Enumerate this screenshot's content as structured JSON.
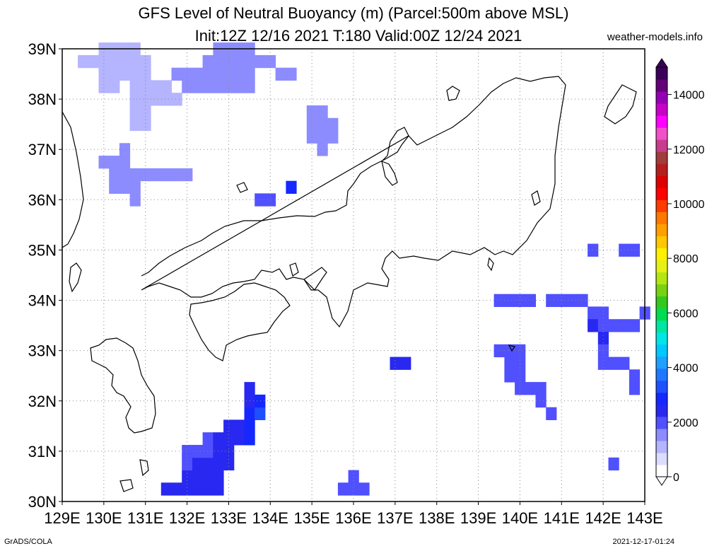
{
  "title_line1": "GFS Level of Neutral Buoyancy (m) (Parcel:500m above MSL)",
  "title_line2": "Init:12Z 12/16 2021 T:180 Valid:00Z 12/24 2021",
  "credit": "weather-models.info",
  "footer_left": "GrADS/COLA",
  "footer_right": "2021-12-17-01:24",
  "map": {
    "lon_range": [
      129,
      143
    ],
    "lat_range": [
      30,
      39
    ],
    "lon_labels": [
      "129E",
      "130E",
      "131E",
      "132E",
      "133E",
      "134E",
      "135E",
      "136E",
      "137E",
      "138E",
      "139E",
      "140E",
      "141E",
      "142E",
      "143E"
    ],
    "lat_labels": [
      "30N",
      "31N",
      "32N",
      "33N",
      "34N",
      "35N",
      "36N",
      "37N",
      "38N",
      "39N"
    ],
    "grid": true,
    "grid_style": "dotted"
  },
  "colorbar": {
    "labels": [
      "0",
      "2000",
      "4000",
      "6000",
      "8000",
      "10000",
      "12000",
      "14000"
    ],
    "max": 15000,
    "colors": [
      "#ffffff",
      "#dcdcff",
      "#b4b4ff",
      "#8c8cff",
      "#5050ff",
      "#2828f0",
      "#1428ff",
      "#1e50ff",
      "#1e78ff",
      "#1ea0ff",
      "#00c8ff",
      "#00e6e6",
      "#00e6a0",
      "#00dc50",
      "#32c81e",
      "#78d214",
      "#b4e614",
      "#e6f014",
      "#fff000",
      "#ffc800",
      "#ffa000",
      "#ff7800",
      "#ff3c00",
      "#ff0000",
      "#dc0000",
      "#b41e1e",
      "#a03c3c",
      "#c83c8c",
      "#f050c8",
      "#ff00ff",
      "#c800c8",
      "#9600b4",
      "#640078",
      "#3c005a"
    ]
  },
  "chart_data": {
    "type": "heatmap",
    "title": "GFS Level of Neutral Buoyancy (m) (Parcel:500m above MSL)",
    "subtitle": "Init:12Z 12/16 2021 T:180 Valid:00Z 12/24 2021",
    "units": "m",
    "xlim": [
      129,
      143
    ],
    "ylim": [
      30,
      39
    ],
    "cells": [
      {
        "lon": 129.5,
        "lat": 38.75,
        "value": 1200
      },
      {
        "lon": 129.75,
        "lat": 38.75,
        "value": 1200
      },
      {
        "lon": 130.0,
        "lat": 38.75,
        "value": 1300
      },
      {
        "lon": 130.25,
        "lat": 38.75,
        "value": 1300
      },
      {
        "lon": 130.5,
        "lat": 38.75,
        "value": 1200
      },
      {
        "lon": 130.75,
        "lat": 38.75,
        "value": 1100
      },
      {
        "lon": 131.0,
        "lat": 38.75,
        "value": 1200
      },
      {
        "lon": 130.0,
        "lat": 39.0,
        "value": 1200
      },
      {
        "lon": 130.25,
        "lat": 39.0,
        "value": 1200
      },
      {
        "lon": 130.5,
        "lat": 39.0,
        "value": 1100
      },
      {
        "lon": 130.75,
        "lat": 39.0,
        "value": 1100
      },
      {
        "lon": 130.0,
        "lat": 38.5,
        "value": 1200
      },
      {
        "lon": 130.25,
        "lat": 38.5,
        "value": 1300
      },
      {
        "lon": 130.5,
        "lat": 38.5,
        "value": 1200
      },
      {
        "lon": 130.75,
        "lat": 38.5,
        "value": 1200
      },
      {
        "lon": 131.0,
        "lat": 38.5,
        "value": 1300
      },
      {
        "lon": 130.0,
        "lat": 38.25,
        "value": 1200
      },
      {
        "lon": 130.25,
        "lat": 38.25,
        "value": 1200
      },
      {
        "lon": 130.75,
        "lat": 38.25,
        "value": 1300
      },
      {
        "lon": 131.0,
        "lat": 38.25,
        "value": 1300
      },
      {
        "lon": 131.25,
        "lat": 38.25,
        "value": 1300
      },
      {
        "lon": 131.5,
        "lat": 38.25,
        "value": 1300
      },
      {
        "lon": 130.75,
        "lat": 38.0,
        "value": 1300
      },
      {
        "lon": 131.0,
        "lat": 38.0,
        "value": 1300
      },
      {
        "lon": 131.25,
        "lat": 38.0,
        "value": 1300
      },
      {
        "lon": 131.5,
        "lat": 38.0,
        "value": 1300
      },
      {
        "lon": 131.75,
        "lat": 38.0,
        "value": 1300
      },
      {
        "lon": 130.75,
        "lat": 37.75,
        "value": 1300
      },
      {
        "lon": 131.0,
        "lat": 37.75,
        "value": 1300
      },
      {
        "lon": 130.75,
        "lat": 37.5,
        "value": 1300
      },
      {
        "lon": 131.0,
        "lat": 37.5,
        "value": 1300
      },
      {
        "lon": 131.75,
        "lat": 38.5,
        "value": 1400
      },
      {
        "lon": 132.0,
        "lat": 38.5,
        "value": 1400
      },
      {
        "lon": 132.25,
        "lat": 38.5,
        "value": 1400
      },
      {
        "lon": 132.5,
        "lat": 38.5,
        "value": 1400
      },
      {
        "lon": 132.75,
        "lat": 38.5,
        "value": 1400
      },
      {
        "lon": 133.0,
        "lat": 38.5,
        "value": 1400
      },
      {
        "lon": 133.25,
        "lat": 38.5,
        "value": 1400
      },
      {
        "lon": 133.5,
        "lat": 38.5,
        "value": 1400
      },
      {
        "lon": 132.0,
        "lat": 38.25,
        "value": 1400
      },
      {
        "lon": 132.25,
        "lat": 38.25,
        "value": 1400
      },
      {
        "lon": 132.5,
        "lat": 38.25,
        "value": 1400
      },
      {
        "lon": 132.75,
        "lat": 38.25,
        "value": 1400
      },
      {
        "lon": 133.0,
        "lat": 38.25,
        "value": 1400
      },
      {
        "lon": 133.25,
        "lat": 38.25,
        "value": 1400
      },
      {
        "lon": 133.5,
        "lat": 38.25,
        "value": 1400
      },
      {
        "lon": 132.5,
        "lat": 38.75,
        "value": 1400
      },
      {
        "lon": 132.75,
        "lat": 38.75,
        "value": 1400
      },
      {
        "lon": 133.0,
        "lat": 38.75,
        "value": 1400
      },
      {
        "lon": 133.25,
        "lat": 38.75,
        "value": 1400
      },
      {
        "lon": 133.5,
        "lat": 38.75,
        "value": 1400
      },
      {
        "lon": 132.75,
        "lat": 39.0,
        "value": 1400
      },
      {
        "lon": 133.0,
        "lat": 39.0,
        "value": 1400
      },
      {
        "lon": 133.25,
        "lat": 39.0,
        "value": 1400
      },
      {
        "lon": 133.5,
        "lat": 39.0,
        "value": 1400
      },
      {
        "lon": 133.75,
        "lat": 38.75,
        "value": 1400
      },
      {
        "lon": 134.0,
        "lat": 38.75,
        "value": 1400
      },
      {
        "lon": 134.25,
        "lat": 38.5,
        "value": 1400
      },
      {
        "lon": 134.5,
        "lat": 38.5,
        "value": 1400
      },
      {
        "lon": 135.0,
        "lat": 37.75,
        "value": 1500
      },
      {
        "lon": 135.25,
        "lat": 37.75,
        "value": 1500
      },
      {
        "lon": 135.0,
        "lat": 37.5,
        "value": 1500
      },
      {
        "lon": 135.25,
        "lat": 37.5,
        "value": 1500
      },
      {
        "lon": 135.5,
        "lat": 37.5,
        "value": 1500
      },
      {
        "lon": 135.0,
        "lat": 37.25,
        "value": 1500
      },
      {
        "lon": 135.25,
        "lat": 37.25,
        "value": 1500
      },
      {
        "lon": 135.5,
        "lat": 37.25,
        "value": 1500
      },
      {
        "lon": 135.25,
        "lat": 37.0,
        "value": 1500
      },
      {
        "lon": 130.0,
        "lat": 36.75,
        "value": 1600
      },
      {
        "lon": 130.25,
        "lat": 36.75,
        "value": 1600
      },
      {
        "lon": 130.5,
        "lat": 37.0,
        "value": 1600
      },
      {
        "lon": 130.5,
        "lat": 36.75,
        "value": 1600
      },
      {
        "lon": 130.75,
        "lat": 36.5,
        "value": 1700
      },
      {
        "lon": 131.0,
        "lat": 36.5,
        "value": 1700
      },
      {
        "lon": 131.25,
        "lat": 36.5,
        "value": 1700
      },
      {
        "lon": 131.5,
        "lat": 36.5,
        "value": 1700
      },
      {
        "lon": 131.75,
        "lat": 36.5,
        "value": 1700
      },
      {
        "lon": 132.0,
        "lat": 36.5,
        "value": 1700
      },
      {
        "lon": 130.25,
        "lat": 36.5,
        "value": 1600
      },
      {
        "lon": 130.5,
        "lat": 36.5,
        "value": 1600
      },
      {
        "lon": 130.25,
        "lat": 36.25,
        "value": 1600
      },
      {
        "lon": 130.5,
        "lat": 36.25,
        "value": 1600
      },
      {
        "lon": 130.75,
        "lat": 36.25,
        "value": 1600
      },
      {
        "lon": 130.75,
        "lat": 36.0,
        "value": 1600
      },
      {
        "lon": 133.75,
        "lat": 36.0,
        "value": 2100
      },
      {
        "lon": 134.0,
        "lat": 36.0,
        "value": 2100
      },
      {
        "lon": 134.5,
        "lat": 36.25,
        "value": 3000
      },
      {
        "lon": 131.5,
        "lat": 30.25,
        "value": 2300
      },
      {
        "lon": 131.75,
        "lat": 30.25,
        "value": 2300
      },
      {
        "lon": 132.0,
        "lat": 30.25,
        "value": 2300
      },
      {
        "lon": 132.25,
        "lat": 30.25,
        "value": 2400
      },
      {
        "lon": 132.5,
        "lat": 30.25,
        "value": 2400
      },
      {
        "lon": 132.75,
        "lat": 30.25,
        "value": 2300
      },
      {
        "lon": 132.0,
        "lat": 30.5,
        "value": 2300
      },
      {
        "lon": 132.25,
        "lat": 30.5,
        "value": 2400
      },
      {
        "lon": 132.5,
        "lat": 30.5,
        "value": 2400
      },
      {
        "lon": 132.75,
        "lat": 30.5,
        "value": 2300
      },
      {
        "lon": 132.0,
        "lat": 30.75,
        "value": 2200
      },
      {
        "lon": 132.25,
        "lat": 30.75,
        "value": 2300
      },
      {
        "lon": 132.5,
        "lat": 30.75,
        "value": 2300
      },
      {
        "lon": 132.75,
        "lat": 30.75,
        "value": 2300
      },
      {
        "lon": 133.0,
        "lat": 30.75,
        "value": 2300
      },
      {
        "lon": 132.0,
        "lat": 31.0,
        "value": 2200
      },
      {
        "lon": 132.25,
        "lat": 31.0,
        "value": 2200
      },
      {
        "lon": 132.5,
        "lat": 31.0,
        "value": 2200
      },
      {
        "lon": 132.75,
        "lat": 31.0,
        "value": 2300
      },
      {
        "lon": 133.0,
        "lat": 31.0,
        "value": 2300
      },
      {
        "lon": 132.5,
        "lat": 31.25,
        "value": 2200
      },
      {
        "lon": 132.75,
        "lat": 31.25,
        "value": 2300
      },
      {
        "lon": 133.0,
        "lat": 31.25,
        "value": 2400
      },
      {
        "lon": 133.25,
        "lat": 31.25,
        "value": 2600
      },
      {
        "lon": 133.5,
        "lat": 31.25,
        "value": 2800
      },
      {
        "lon": 133.0,
        "lat": 31.5,
        "value": 2400
      },
      {
        "lon": 133.25,
        "lat": 31.5,
        "value": 2500
      },
      {
        "lon": 133.5,
        "lat": 31.5,
        "value": 2800
      },
      {
        "lon": 133.5,
        "lat": 31.75,
        "value": 2700
      },
      {
        "lon": 133.75,
        "lat": 31.75,
        "value": 3100
      },
      {
        "lon": 133.5,
        "lat": 32.0,
        "value": 2600
      },
      {
        "lon": 133.75,
        "lat": 32.0,
        "value": 3000
      },
      {
        "lon": 133.5,
        "lat": 32.25,
        "value": 2300
      },
      {
        "lon": 136.0,
        "lat": 30.5,
        "value": 2100
      },
      {
        "lon": 135.75,
        "lat": 30.25,
        "value": 2100
      },
      {
        "lon": 136.0,
        "lat": 30.25,
        "value": 2100
      },
      {
        "lon": 136.25,
        "lat": 30.25,
        "value": 2100
      },
      {
        "lon": 137.0,
        "lat": 32.75,
        "value": 2500
      },
      {
        "lon": 137.25,
        "lat": 32.75,
        "value": 2500
      },
      {
        "lon": 139.5,
        "lat": 34.0,
        "value": 2100
      },
      {
        "lon": 139.75,
        "lat": 34.0,
        "value": 2100
      },
      {
        "lon": 140.0,
        "lat": 34.0,
        "value": 2100
      },
      {
        "lon": 140.25,
        "lat": 34.0,
        "value": 2100
      },
      {
        "lon": 139.5,
        "lat": 33.0,
        "value": 2000
      },
      {
        "lon": 139.75,
        "lat": 33.0,
        "value": 2000
      },
      {
        "lon": 140.0,
        "lat": 33.0,
        "value": 2000
      },
      {
        "lon": 139.75,
        "lat": 32.75,
        "value": 2000
      },
      {
        "lon": 140.0,
        "lat": 32.75,
        "value": 2000
      },
      {
        "lon": 139.75,
        "lat": 32.5,
        "value": 2000
      },
      {
        "lon": 140.0,
        "lat": 32.5,
        "value": 2000
      },
      {
        "lon": 140.0,
        "lat": 32.25,
        "value": 2000
      },
      {
        "lon": 140.25,
        "lat": 32.25,
        "value": 2000
      },
      {
        "lon": 140.5,
        "lat": 32.25,
        "value": 2000
      },
      {
        "lon": 140.5,
        "lat": 32.0,
        "value": 2000
      },
      {
        "lon": 140.75,
        "lat": 31.75,
        "value": 2000
      },
      {
        "lon": 140.75,
        "lat": 34.0,
        "value": 2000
      },
      {
        "lon": 141.0,
        "lat": 34.0,
        "value": 2000
      },
      {
        "lon": 141.25,
        "lat": 34.0,
        "value": 2000
      },
      {
        "lon": 141.5,
        "lat": 34.0,
        "value": 2000
      },
      {
        "lon": 141.75,
        "lat": 33.75,
        "value": 2200
      },
      {
        "lon": 142.0,
        "lat": 33.75,
        "value": 2100
      },
      {
        "lon": 141.75,
        "lat": 33.5,
        "value": 2300
      },
      {
        "lon": 142.0,
        "lat": 33.5,
        "value": 2200
      },
      {
        "lon": 142.25,
        "lat": 33.5,
        "value": 2000
      },
      {
        "lon": 142.5,
        "lat": 33.5,
        "value": 2000
      },
      {
        "lon": 142.75,
        "lat": 33.5,
        "value": 2000
      },
      {
        "lon": 142.0,
        "lat": 33.25,
        "value": 2300
      },
      {
        "lon": 142.0,
        "lat": 33.0,
        "value": 2200
      },
      {
        "lon": 142.0,
        "lat": 32.75,
        "value": 2000
      },
      {
        "lon": 142.25,
        "lat": 32.75,
        "value": 2000
      },
      {
        "lon": 142.5,
        "lat": 32.75,
        "value": 2000
      },
      {
        "lon": 142.75,
        "lat": 32.5,
        "value": 2000
      },
      {
        "lon": 143.0,
        "lat": 33.75,
        "value": 1800
      },
      {
        "lon": 142.75,
        "lat": 32.25,
        "value": 2000
      },
      {
        "lon": 141.75,
        "lat": 35.0,
        "value": 1800
      },
      {
        "lon": 142.5,
        "lat": 35.0,
        "value": 1900
      },
      {
        "lon": 142.75,
        "lat": 35.0,
        "value": 1900
      },
      {
        "lon": 142.25,
        "lat": 30.75,
        "value": 2000
      }
    ]
  }
}
